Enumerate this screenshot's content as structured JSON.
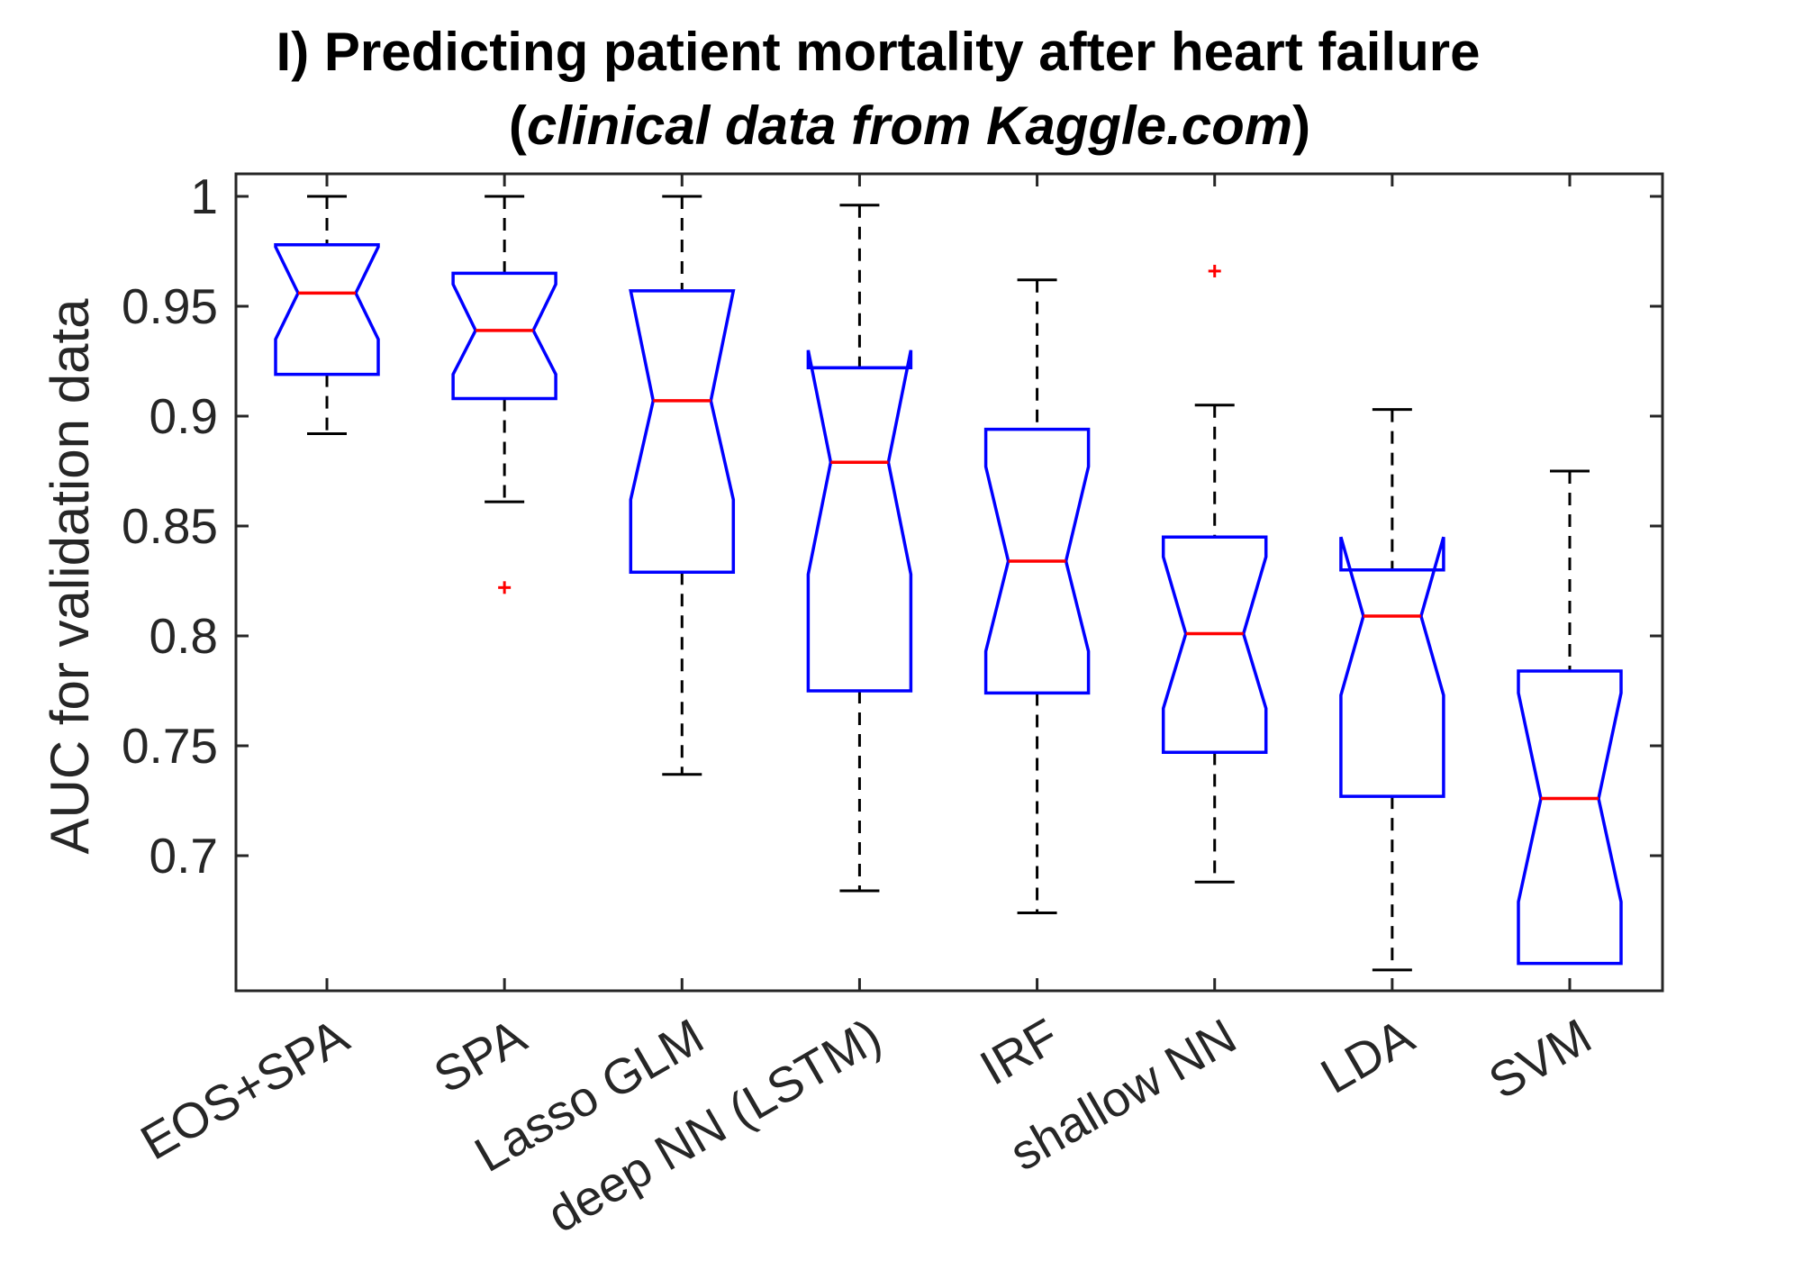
{
  "title": {
    "line1": "I) Predicting patient mortality after heart failure",
    "line2_open": "(",
    "line2_italic": "clinical data from Kaggle.com",
    "line2_close": ")"
  },
  "colors": {
    "box": "#0000ff",
    "median": "#ff0000",
    "whisker": "#000000",
    "outlier": "#ff0000",
    "axis": "#262626"
  },
  "chart_data": {
    "type": "boxplot",
    "notched": true,
    "title": "I) Predicting patient mortality after heart failure (clinical data from Kaggle.com)",
    "xlabel": "",
    "ylabel": "AUC for validation data",
    "ylim": [
      0.64,
      1.01
    ],
    "yticks": [
      0.7,
      0.75,
      0.8,
      0.85,
      0.9,
      0.95,
      1
    ],
    "ytick_labels": [
      "0.7",
      "0.75",
      "0.8",
      "0.85",
      "0.9",
      "0.95",
      "1"
    ],
    "grid": false,
    "categories": [
      "EOS+SPA",
      "SPA",
      "Lasso GLM",
      "deep NN (LSTM)",
      "IRF",
      "shallow NN",
      "LDA",
      "SVM"
    ],
    "boxes": [
      {
        "name": "EOS+SPA",
        "whisker_low": 0.892,
        "q1": 0.919,
        "median": 0.956,
        "q3": 0.978,
        "whisker_high": 1.0,
        "notch_low": 0.935,
        "notch_high": 0.977,
        "outliers": []
      },
      {
        "name": "SPA",
        "whisker_low": 0.861,
        "q1": 0.908,
        "median": 0.939,
        "q3": 0.965,
        "whisker_high": 1.0,
        "notch_low": 0.919,
        "notch_high": 0.96,
        "outliers": [
          0.822
        ]
      },
      {
        "name": "Lasso GLM",
        "whisker_low": 0.737,
        "q1": 0.829,
        "median": 0.907,
        "q3": 0.957,
        "whisker_high": 1.0,
        "notch_low": 0.862,
        "notch_high": 0.957,
        "outliers": []
      },
      {
        "name": "deep NN (LSTM)",
        "whisker_low": 0.684,
        "q1": 0.775,
        "median": 0.879,
        "q3": 0.922,
        "whisker_high": 0.996,
        "notch_low": 0.828,
        "notch_high": 0.93,
        "outliers": []
      },
      {
        "name": "IRF",
        "whisker_low": 0.674,
        "q1": 0.774,
        "median": 0.834,
        "q3": 0.894,
        "whisker_high": 0.962,
        "notch_low": 0.793,
        "notch_high": 0.877,
        "outliers": []
      },
      {
        "name": "shallow NN",
        "whisker_low": 0.688,
        "q1": 0.747,
        "median": 0.801,
        "q3": 0.845,
        "whisker_high": 0.905,
        "notch_low": 0.767,
        "notch_high": 0.836,
        "outliers": [
          0.966
        ]
      },
      {
        "name": "LDA",
        "whisker_low": 0.648,
        "q1": 0.727,
        "median": 0.809,
        "q3": 0.83,
        "whisker_high": 0.903,
        "notch_low": 0.773,
        "notch_high": 0.845,
        "outliers": []
      },
      {
        "name": "SVM",
        "whisker_low": 0.651,
        "q1": 0.651,
        "median": 0.726,
        "q3": 0.784,
        "whisker_high": 0.875,
        "notch_low": 0.679,
        "notch_high": 0.774,
        "outliers": []
      }
    ]
  }
}
